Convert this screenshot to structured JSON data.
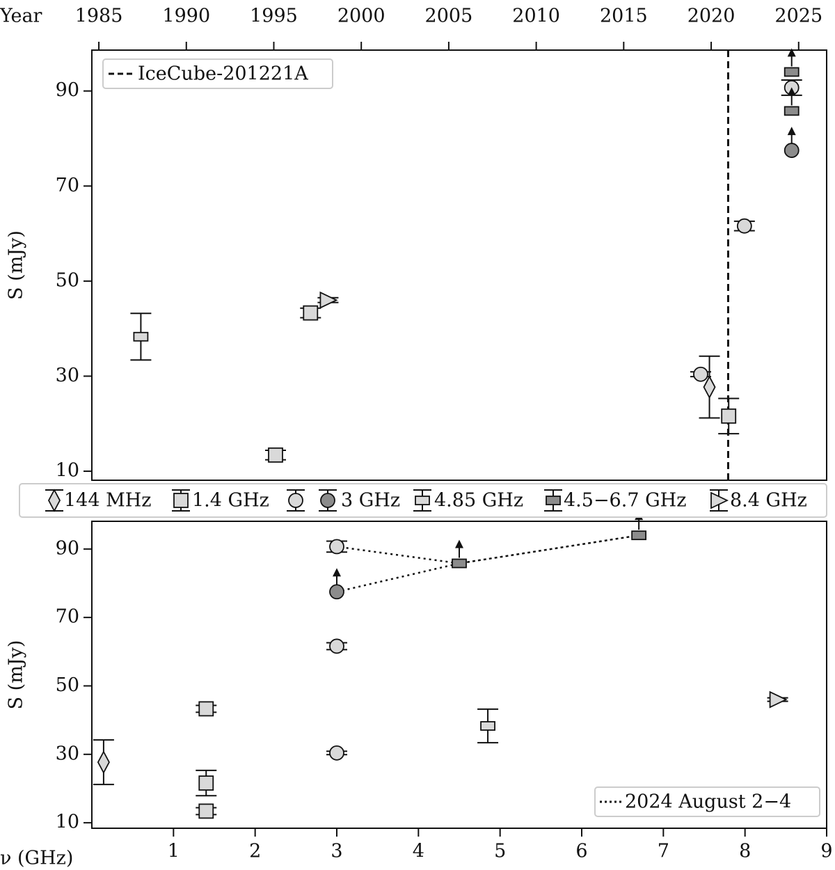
{
  "chart_data": [
    {
      "type": "scatter",
      "xlabel": "Year",
      "ylabel": "S (mJy)",
      "xlim": [
        1984.6,
        2026.6
      ],
      "xticks": [
        1985,
        1990,
        1995,
        2000,
        2005,
        2010,
        2015,
        2020,
        2025
      ],
      "ylim": [
        8.1,
        98.6
      ],
      "yticks": [
        10,
        30,
        50,
        70,
        90
      ],
      "vlines": [
        {
          "name": "IceCube-201221A",
          "x": 2020.97,
          "style": "dashed",
          "color": "#111111"
        }
      ],
      "legend": "upper left",
      "series": [
        {
          "name": "144 MHz",
          "marker": "diamond",
          "color": "#d9d9d9",
          "x": [
            2019.9
          ],
          "values": [
            27.7
          ],
          "errors": [
            6.5
          ],
          "lower_limits": [
            false
          ]
        },
        {
          "name": "1.4 GHz",
          "marker": "square",
          "color": "#d9d9d9",
          "x": [
            1995.1,
            1997.1,
            2021.0
          ],
          "values": [
            13.4,
            43.3,
            21.6
          ],
          "errors": [
            1.0,
            1.0,
            3.7
          ],
          "lower_limits": [
            false,
            false,
            false
          ]
        },
        {
          "name": "3 GHz",
          "marker": "circle",
          "color": "#d9d9d9",
          "limit_color": "#8c8c8c",
          "x": [
            2019.4,
            2021.9,
            2024.6,
            2024.6
          ],
          "values": [
            30.4,
            61.6,
            90.7,
            77.5
          ],
          "errors": [
            0.5,
            1.0,
            1.6,
            null
          ],
          "lower_limits": [
            false,
            false,
            false,
            true
          ]
        },
        {
          "name": "4.85 GHz",
          "marker": "rect",
          "color": "#d9d9d9",
          "x": [
            1987.4
          ],
          "values": [
            38.3
          ],
          "errors": [
            4.9
          ],
          "lower_limits": [
            false
          ]
        },
        {
          "name": "4.5−6.7 GHz",
          "marker": "rect",
          "color": "#8c8c8c",
          "x": [
            2024.6,
            2024.6
          ],
          "values": [
            85.8,
            94.0
          ],
          "errors": [
            null,
            null
          ],
          "lower_limits": [
            true,
            true
          ]
        },
        {
          "name": "8.4 GHz",
          "marker": "triangle-right",
          "color": "#d9d9d9",
          "x": [
            1998.1
          ],
          "values": [
            46.0
          ],
          "errors": [
            0.5
          ],
          "lower_limits": [
            false
          ]
        }
      ]
    },
    {
      "type": "scatter",
      "xlabel": "ν (GHz)",
      "ylabel": "S (mJy)",
      "xlim": [
        0,
        9
      ],
      "xticks": [
        1,
        2,
        3,
        4,
        5,
        6,
        7,
        8,
        9
      ],
      "ylim": [
        8.4,
        98.1
      ],
      "yticks": [
        10,
        30,
        50,
        70,
        90
      ],
      "lines": [
        {
          "name": "2024 August 2−4",
          "style": "dotted",
          "color": "#111111",
          "x": [
            3,
            4.5,
            6.7,
            4.5,
            3
          ],
          "y": [
            77.5,
            85.8,
            94.0,
            85.8,
            90.7
          ]
        }
      ],
      "legend": "lower right",
      "series": [
        {
          "marker": "diamond",
          "color": "#d9d9d9",
          "x": [
            0.144
          ],
          "values": [
            27.7
          ],
          "errors": [
            6.5
          ],
          "lower_limits": [
            false
          ]
        },
        {
          "marker": "square",
          "color": "#d9d9d9",
          "x": [
            1.4,
            1.4,
            1.4
          ],
          "values": [
            13.4,
            43.3,
            21.6
          ],
          "errors": [
            1.0,
            1.0,
            3.7
          ],
          "lower_limits": [
            false,
            false,
            false
          ]
        },
        {
          "marker": "circle",
          "color": "#d9d9d9",
          "limit_color": "#8c8c8c",
          "x": [
            3,
            3,
            3,
            3
          ],
          "values": [
            30.4,
            61.6,
            90.7,
            77.5
          ],
          "errors": [
            0.5,
            1.0,
            1.6,
            null
          ],
          "lower_limits": [
            false,
            false,
            false,
            true
          ]
        },
        {
          "marker": "rect",
          "color": "#d9d9d9",
          "x": [
            4.85
          ],
          "values": [
            38.3
          ],
          "errors": [
            4.9
          ],
          "lower_limits": [
            false
          ]
        },
        {
          "marker": "rect",
          "color": "#8c8c8c",
          "x": [
            4.5,
            6.7
          ],
          "values": [
            85.8,
            94.0
          ],
          "errors": [
            null,
            null
          ],
          "lower_limits": [
            true,
            true
          ]
        },
        {
          "marker": "triangle-right",
          "color": "#d9d9d9",
          "x": [
            8.4
          ],
          "values": [
            46.0
          ],
          "errors": [
            0.5
          ],
          "lower_limits": [
            false
          ]
        }
      ]
    }
  ]
}
